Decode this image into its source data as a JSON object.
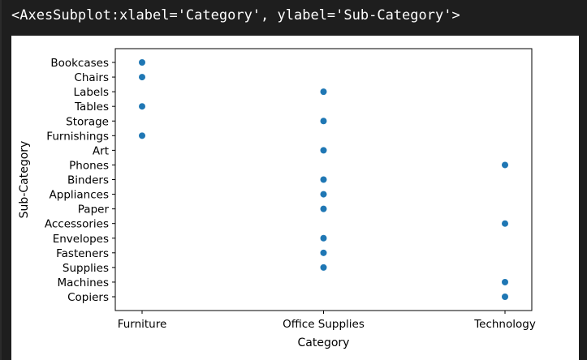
{
  "output_text": "<AxesSubplot:xlabel='Category', ylabel='Sub-Category'>",
  "colors": {
    "point": "#1f77b4",
    "axis": "#000000"
  },
  "chart_data": {
    "type": "scatter",
    "xlabel": "Category",
    "ylabel": "Sub-Category",
    "x_categories": [
      "Furniture",
      "Office Supplies",
      "Technology"
    ],
    "y_categories": [
      "Bookcases",
      "Chairs",
      "Labels",
      "Tables",
      "Storage",
      "Furnishings",
      "Art",
      "Phones",
      "Binders",
      "Appliances",
      "Paper",
      "Accessories",
      "Envelopes",
      "Fasteners",
      "Supplies",
      "Machines",
      "Copiers"
    ],
    "points": [
      {
        "x": "Furniture",
        "y": "Bookcases"
      },
      {
        "x": "Furniture",
        "y": "Chairs"
      },
      {
        "x": "Office Supplies",
        "y": "Labels"
      },
      {
        "x": "Furniture",
        "y": "Tables"
      },
      {
        "x": "Office Supplies",
        "y": "Storage"
      },
      {
        "x": "Furniture",
        "y": "Furnishings"
      },
      {
        "x": "Office Supplies",
        "y": "Art"
      },
      {
        "x": "Technology",
        "y": "Phones"
      },
      {
        "x": "Office Supplies",
        "y": "Binders"
      },
      {
        "x": "Office Supplies",
        "y": "Appliances"
      },
      {
        "x": "Office Supplies",
        "y": "Paper"
      },
      {
        "x": "Technology",
        "y": "Accessories"
      },
      {
        "x": "Office Supplies",
        "y": "Envelopes"
      },
      {
        "x": "Office Supplies",
        "y": "Fasteners"
      },
      {
        "x": "Office Supplies",
        "y": "Supplies"
      },
      {
        "x": "Technology",
        "y": "Machines"
      },
      {
        "x": "Technology",
        "y": "Copiers"
      }
    ],
    "grid": false,
    "legend": "none"
  }
}
